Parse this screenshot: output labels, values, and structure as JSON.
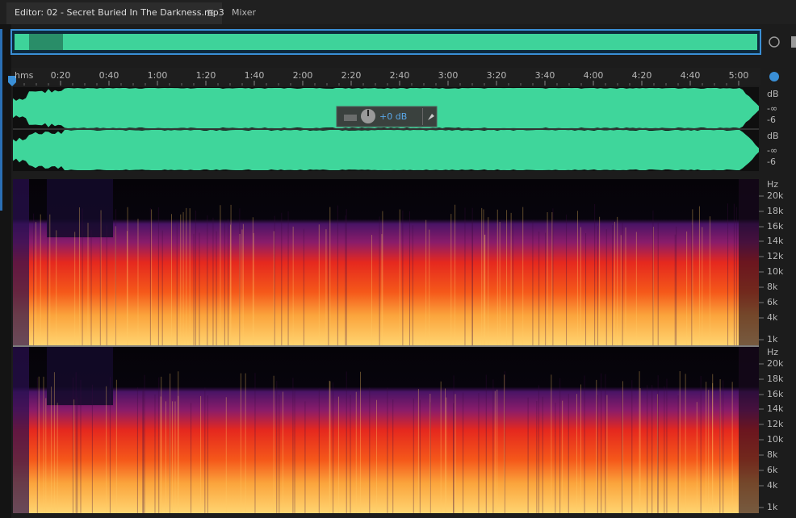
{
  "tabs": [
    {
      "label": "Editor: 02 - Secret Buried In The Darkness.mp3"
    },
    {
      "label": "Mixer"
    }
  ],
  "timeline": {
    "unit": "hms",
    "labels": [
      "0:20",
      "0:40",
      "1:00",
      "1:20",
      "1:40",
      "2:00",
      "2:20",
      "2:40",
      "3:00",
      "3:20",
      "3:40",
      "4:00",
      "4:20",
      "4:40",
      "5:00"
    ]
  },
  "waveform": {
    "channels": [
      {
        "unit": "dB",
        "labels": [
          "-∞",
          "-6"
        ]
      },
      {
        "unit": "dB",
        "labels": [
          "-∞",
          "-6"
        ]
      }
    ]
  },
  "hud": {
    "gain": "+0 dB"
  },
  "spectrogram": {
    "channels": [
      {
        "unit": "Hz",
        "labels": [
          "20k",
          "18k",
          "16k",
          "14k",
          "12k",
          "10k",
          "8k",
          "6k",
          "4k",
          "1k"
        ]
      },
      {
        "unit": "Hz",
        "labels": [
          "20k",
          "18k",
          "16k",
          "14k",
          "12k",
          "10k",
          "8k",
          "6k",
          "4k",
          "1k"
        ]
      }
    ]
  }
}
